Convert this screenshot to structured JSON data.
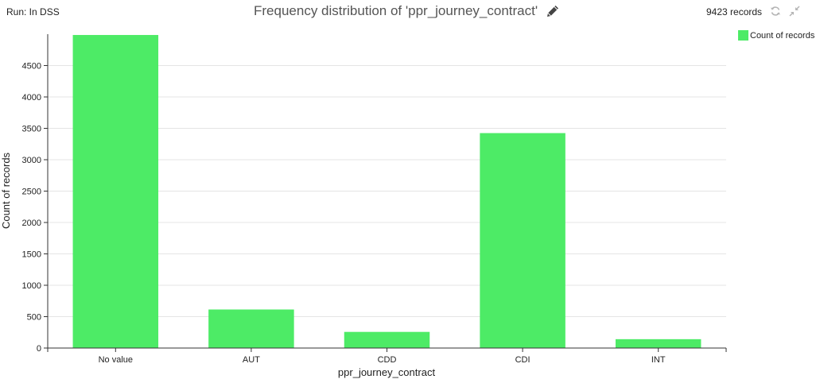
{
  "header": {
    "run_label": "Run: In DSS",
    "title": "Frequency distribution of 'ppr_journey_contract'",
    "records": "9423 records"
  },
  "icons": {
    "edit": "pencil-icon",
    "refresh": "refresh-icon",
    "collapse": "shrink-icon"
  },
  "legend": {
    "label": "Count of records",
    "color": "#4deb66"
  },
  "chart_data": {
    "type": "bar",
    "categories": [
      "No value",
      "AUT",
      "CDD",
      "CDI",
      "INT"
    ],
    "series": [
      {
        "name": "Count of records",
        "values": [
          4987,
          614,
          257,
          3424,
          141
        ],
        "color": "#4deb66"
      }
    ],
    "xlabel": "ppr_journey_contract",
    "ylabel": "Count of records",
    "ylim": [
      0,
      5000
    ],
    "yticks": [
      0,
      500,
      1000,
      1500,
      2000,
      2500,
      3000,
      3500,
      4000,
      4500
    ],
    "grid": true,
    "legend_position": "top-right",
    "total_records": 9423
  }
}
